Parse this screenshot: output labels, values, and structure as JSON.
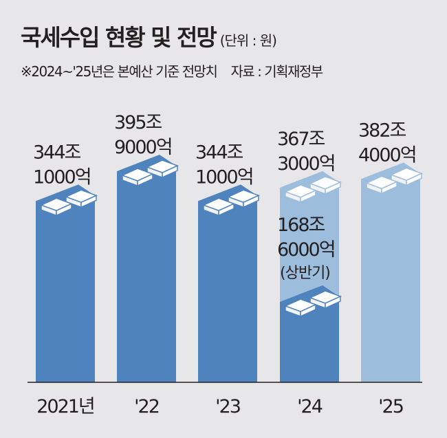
{
  "title": "국세수입 현황 및 전망",
  "unit": "(단위 : 원)",
  "note": "※2024~'25년은 본예산 기준 전망치",
  "source": "자료 : 기획재정부",
  "colors": {
    "actual": "#4f83be",
    "forecast": "#9dbddc",
    "background": "#e7e7e9"
  },
  "chart_data": {
    "type": "bar",
    "categories": [
      "2021년",
      "'22",
      "'23",
      "'24",
      "'25"
    ],
    "series": [
      {
        "values": [
          344.1,
          395.9,
          344.1,
          367.3,
          382.4
        ],
        "labels": [
          [
            "344조",
            "1000억"
          ],
          [
            "395조",
            "9000억"
          ],
          [
            "344조",
            "1000억"
          ],
          [
            "367조",
            "3000억"
          ],
          [
            "382조",
            "4000억"
          ]
        ]
      }
    ],
    "annotation": {
      "category": "'24",
      "value": 168.6,
      "lines": [
        "168조",
        "6000억",
        "(상반기)"
      ]
    },
    "forecast_categories": [
      "'24",
      "'25"
    ],
    "value_unit": "조원"
  }
}
